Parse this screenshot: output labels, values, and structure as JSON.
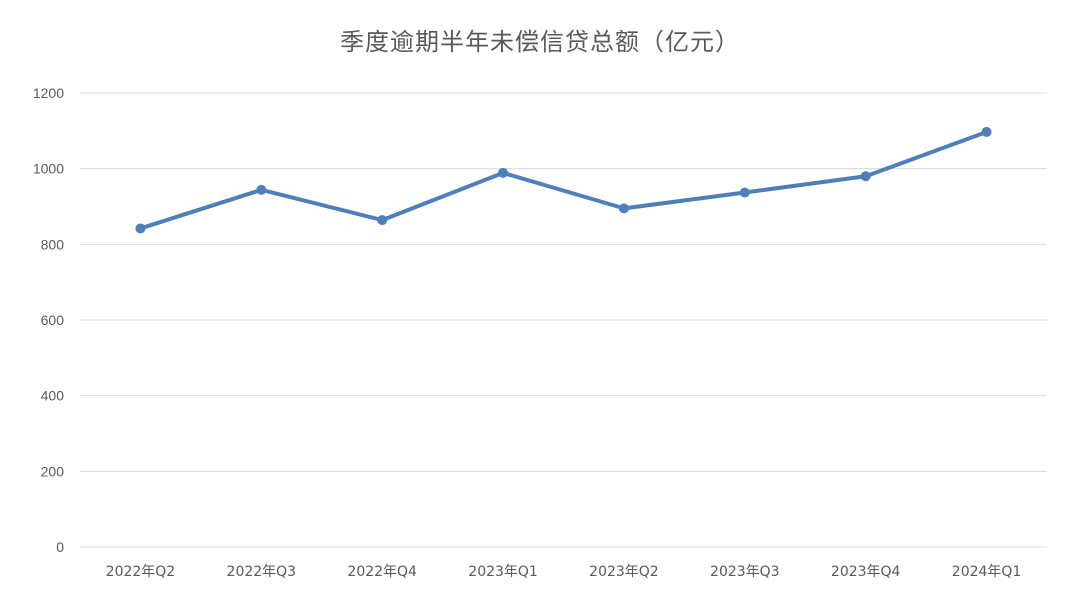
{
  "chart_data": {
    "type": "line",
    "title": "季度逾期半年未偿信贷总额（亿元）",
    "xlabel": "",
    "ylabel": "",
    "categories": [
      "2022年Q2",
      "2022年Q3",
      "2022年Q4",
      "2023年Q1",
      "2023年Q2",
      "2023年Q3",
      "2023年Q4",
      "2024年Q1"
    ],
    "series": [
      {
        "values": [
          842,
          944,
          864,
          989,
          895,
          937,
          980,
          1097
        ]
      }
    ],
    "ylim": [
      0,
      1200
    ],
    "yticks": [
      0,
      200,
      400,
      600,
      800,
      1000,
      1200
    ],
    "grid": true,
    "legend": "none",
    "colors": {
      "line": "#4f7fb8",
      "grid": "#d9d9d9",
      "text": "#595959"
    }
  }
}
